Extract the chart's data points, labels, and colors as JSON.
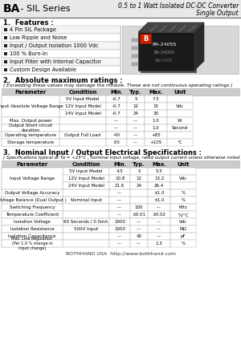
{
  "title_bold": "BA",
  "title_dash": " - SIL Series",
  "title_right1": "0.5 to 1 Watt Isolated DC-DC Converter",
  "title_right2": "Single Output",
  "section1_title": "1.  Features :",
  "features": [
    "4 Pin SIL Package",
    "Low Ripple and Noise",
    "Input / Output Isolation 1000 Vdc",
    "100 % Burn-In",
    "Input Filter with Internal Capacitor",
    "Custom Design Available"
  ],
  "section2_title": "2.  Absolute maximum ratings :",
  "section2_note": "( Exceeding these values may damage the module. These are not continuous operating ratings )",
  "abs_headers": [
    "Parameter",
    "Condition",
    "Min.",
    "Typ.",
    "Max.",
    "Unit"
  ],
  "abs_rows": [
    [
      "",
      "5V Input Model",
      "-0.7",
      "5",
      "7.5",
      ""
    ],
    [
      "Input Absolute Voltage Range",
      "12V Input Model",
      "-0.7",
      "12",
      "15",
      "Vdc"
    ],
    [
      "",
      "24V Input Model",
      "-0.7",
      "24",
      "30",
      ""
    ],
    [
      "Max. Output power",
      "",
      "---",
      "---",
      "1.0",
      "W"
    ],
    [
      "Output Short circuit duration",
      "",
      "---",
      "---",
      "1.0",
      "Second"
    ],
    [
      "Operating temperature",
      "Output Full Load",
      "-40",
      "---",
      "+85",
      ""
    ],
    [
      "Storage temperature",
      "",
      "-55",
      "---",
      "+105",
      "°C"
    ]
  ],
  "abs_merge": [
    [
      0,
      3,
      "Input Absolute Voltage Range"
    ],
    [
      3,
      4,
      "Max. Output power"
    ],
    [
      4,
      5,
      "Output Short circuit\nduration"
    ],
    [
      5,
      6,
      "Operating temperature"
    ],
    [
      6,
      7,
      "Storage temperature"
    ]
  ],
  "section3_title": "3.  Nominal Input / Output Electrical Specifications :",
  "section3_note": "( Specifications typical at Ta = +25°C , nominal input voltage, rated output current unless otherwise noted )",
  "elec_headers": [
    "Parameter",
    "Condition",
    "Min.",
    "Typ.",
    "Max.",
    "Unit"
  ],
  "elec_rows": [
    [
      "",
      "5V Input Model",
      "4.5",
      "5",
      "5.5",
      ""
    ],
    [
      "Input Voltage Range",
      "12V Input Model",
      "10.8",
      "12",
      "13.2",
      "Vdc"
    ],
    [
      "",
      "24V Input Model",
      "21.6",
      "24",
      "26.4",
      ""
    ],
    [
      "Output Voltage Accuracy",
      "",
      "---",
      "",
      "±1.0",
      "%"
    ],
    [
      "Voltage Balance (Dual Output )",
      "Nominal Input",
      "---",
      "",
      "±1.0",
      "%"
    ],
    [
      "Switching Frequency",
      "",
      "---",
      "100",
      "---",
      "KHz"
    ],
    [
      "Temperature Coefficient",
      "",
      "---",
      "±0.01",
      "±0.02",
      "%/°C"
    ],
    [
      "Isolation Voltage",
      "60 Seconds / 0.5mA",
      "1000",
      "---",
      "---",
      "Vdc"
    ],
    [
      "Isolation Resistance",
      "500V Input",
      "1000",
      "---",
      "---",
      "MΩ"
    ],
    [
      "Isolation Capacitance",
      "",
      "---",
      "40",
      "---",
      "pF"
    ],
    [
      "Max. Line Regulation (Per 1.0 % change in input change)",
      "",
      "---",
      "---",
      "1.3",
      "%"
    ]
  ],
  "elec_merge": [
    [
      0,
      3,
      "Input Voltage Range"
    ],
    [
      3,
      4,
      "Output Voltage Accuracy"
    ],
    [
      4,
      5,
      "Voltage Balance (Dual Output )"
    ],
    [
      5,
      6,
      "Switching Frequency"
    ],
    [
      6,
      7,
      "Temperature Coefficient"
    ],
    [
      7,
      8,
      "Isolation Voltage"
    ],
    [
      8,
      9,
      "Isolation Resistance"
    ],
    [
      9,
      10,
      "Isolation Capacitance"
    ],
    [
      10,
      11,
      "Max. Line Regulation\n(Per 1.0 % change in\ninput change)"
    ]
  ],
  "footer": "BOTHHAND USA  http://www.bothhand.com",
  "bg_color": "#e8e8e8",
  "row_stripe": "#f5f5f5",
  "white": "#ffffff",
  "border_color": "#aaaaaa",
  "header_bg": "#cccccc"
}
